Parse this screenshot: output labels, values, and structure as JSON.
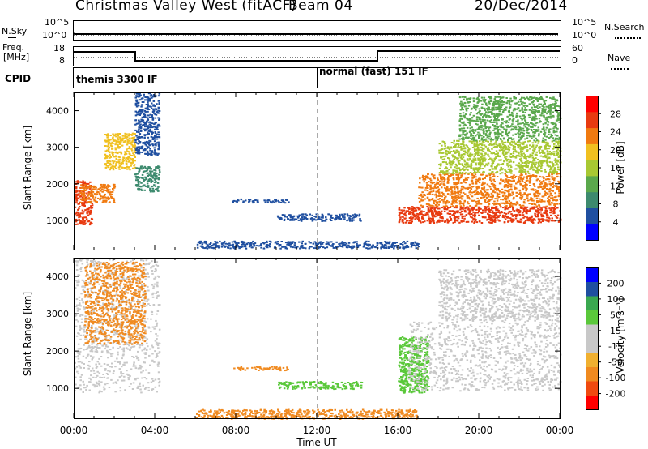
{
  "header": {
    "title": "Christmas Valley West (fitACF)",
    "beam": "Beam 04",
    "date": "20/Dec/2014"
  },
  "status_panels": {
    "nsky_label": "N.Sky",
    "nsky_ticks": [
      "10^5",
      "10^0"
    ],
    "nsearch_label": "N.Search",
    "freq_label": "Freq.",
    "freq_unit": "[MHz]",
    "freq_ticks": [
      "18",
      "8"
    ],
    "nave_ticks": [
      "60",
      "0"
    ],
    "nave_label": "Nave",
    "cpid_label": "CPID",
    "cpid_segments": [
      "themis 3300 IF",
      "normal (fast) 151 IF"
    ]
  },
  "colors": {
    "power": [
      "#0000ff",
      "#1f4fa0",
      "#3d8a6e",
      "#5aa84c",
      "#a8c832",
      "#f0c020",
      "#f07a10",
      "#e83a10",
      "#ff0000"
    ],
    "velocity": [
      "#ff0000",
      "#f04a10",
      "#f08a20",
      "#f0b030",
      "#c8c8c8",
      "#c8c8c8",
      "#5ac83a",
      "#3aa850",
      "#1f4fa0",
      "#0000ff"
    ],
    "ground_scatter": "#c8c8c8",
    "marker_line": "#aaaaaa"
  },
  "chart_data": [
    {
      "type": "heatmap",
      "name": "power",
      "ylabel": "Slant Range [km]",
      "ylim": [
        200,
        4500
      ],
      "yticks": [
        "4000",
        "3000",
        "2000",
        "1000"
      ],
      "xlim_hours": [
        0,
        24
      ],
      "colorbar": {
        "label": "Power [dB]",
        "ticks": [
          "28",
          "24",
          "20",
          "16",
          "12",
          "8",
          "4"
        ],
        "range": [
          0,
          32
        ]
      },
      "regions": [
        {
          "t": [
            0.0,
            0.9
          ],
          "r": [
            900,
            2100
          ],
          "v": "26"
        },
        {
          "t": [
            0.3,
            2.0
          ],
          "r": [
            1500,
            2000
          ],
          "v": "22"
        },
        {
          "t": [
            1.5,
            3.0
          ],
          "r": [
            2400,
            3400
          ],
          "v": "18"
        },
        {
          "t": [
            3.0,
            4.2
          ],
          "r": [
            1800,
            2500
          ],
          "v": "10"
        },
        {
          "t": [
            3.0,
            4.2
          ],
          "r": [
            2800,
            4500
          ],
          "v": "6"
        },
        {
          "t": [
            7.8,
            10.6
          ],
          "r": [
            1500,
            1600
          ],
          "v": "4"
        },
        {
          "t": [
            10.0,
            14.2
          ],
          "r": [
            1000,
            1200
          ],
          "v": "5"
        },
        {
          "t": [
            6.0,
            17.0
          ],
          "r": [
            250,
            450
          ],
          "v": "4"
        },
        {
          "t": [
            16.0,
            24.0
          ],
          "r": [
            950,
            1400
          ],
          "v": "28"
        },
        {
          "t": [
            17.0,
            24.0
          ],
          "r": [
            1400,
            2300
          ],
          "v": "22"
        },
        {
          "t": [
            18.0,
            24.0
          ],
          "r": [
            2300,
            3200
          ],
          "v": "16"
        },
        {
          "t": [
            19.0,
            24.0
          ],
          "r": [
            3200,
            4400
          ],
          "v": "12"
        }
      ]
    },
    {
      "type": "heatmap",
      "name": "velocity",
      "ylabel": "Slant Range [km]",
      "ylim": [
        200,
        4500
      ],
      "yticks": [
        "4000",
        "3000",
        "2000",
        "1000"
      ],
      "xlim_hours": [
        0,
        24
      ],
      "xticks": [
        "00:00",
        "04:00",
        "08:00",
        "12:00",
        "16:00",
        "20:00",
        "00:00"
      ],
      "xlabel": "Time UT",
      "colorbar": {
        "label": "Velocity [m s⁻¹]",
        "ticks": [
          "200",
          "100",
          "50",
          "15",
          "-15",
          "-50",
          "-100",
          "-200"
        ]
      },
      "regions": [
        {
          "t": [
            0.0,
            4.2
          ],
          "r": [
            900,
            4500
          ],
          "v": "ground"
        },
        {
          "t": [
            0.5,
            3.5
          ],
          "r": [
            2200,
            4400
          ],
          "v": "-50"
        },
        {
          "t": [
            7.8,
            10.6
          ],
          "r": [
            1500,
            1600
          ],
          "v": "-50"
        },
        {
          "t": [
            10.0,
            14.2
          ],
          "r": [
            1000,
            1200
          ],
          "v": "50"
        },
        {
          "t": [
            6.0,
            17.0
          ],
          "r": [
            200,
            450
          ],
          "v": "-50"
        },
        {
          "t": [
            16.0,
            17.5
          ],
          "r": [
            900,
            2400
          ],
          "v": "50"
        },
        {
          "t": [
            16.5,
            24.0
          ],
          "r": [
            950,
            2800
          ],
          "v": "ground"
        },
        {
          "t": [
            18.0,
            24.0
          ],
          "r": [
            2800,
            4200
          ],
          "v": "15"
        }
      ]
    }
  ]
}
